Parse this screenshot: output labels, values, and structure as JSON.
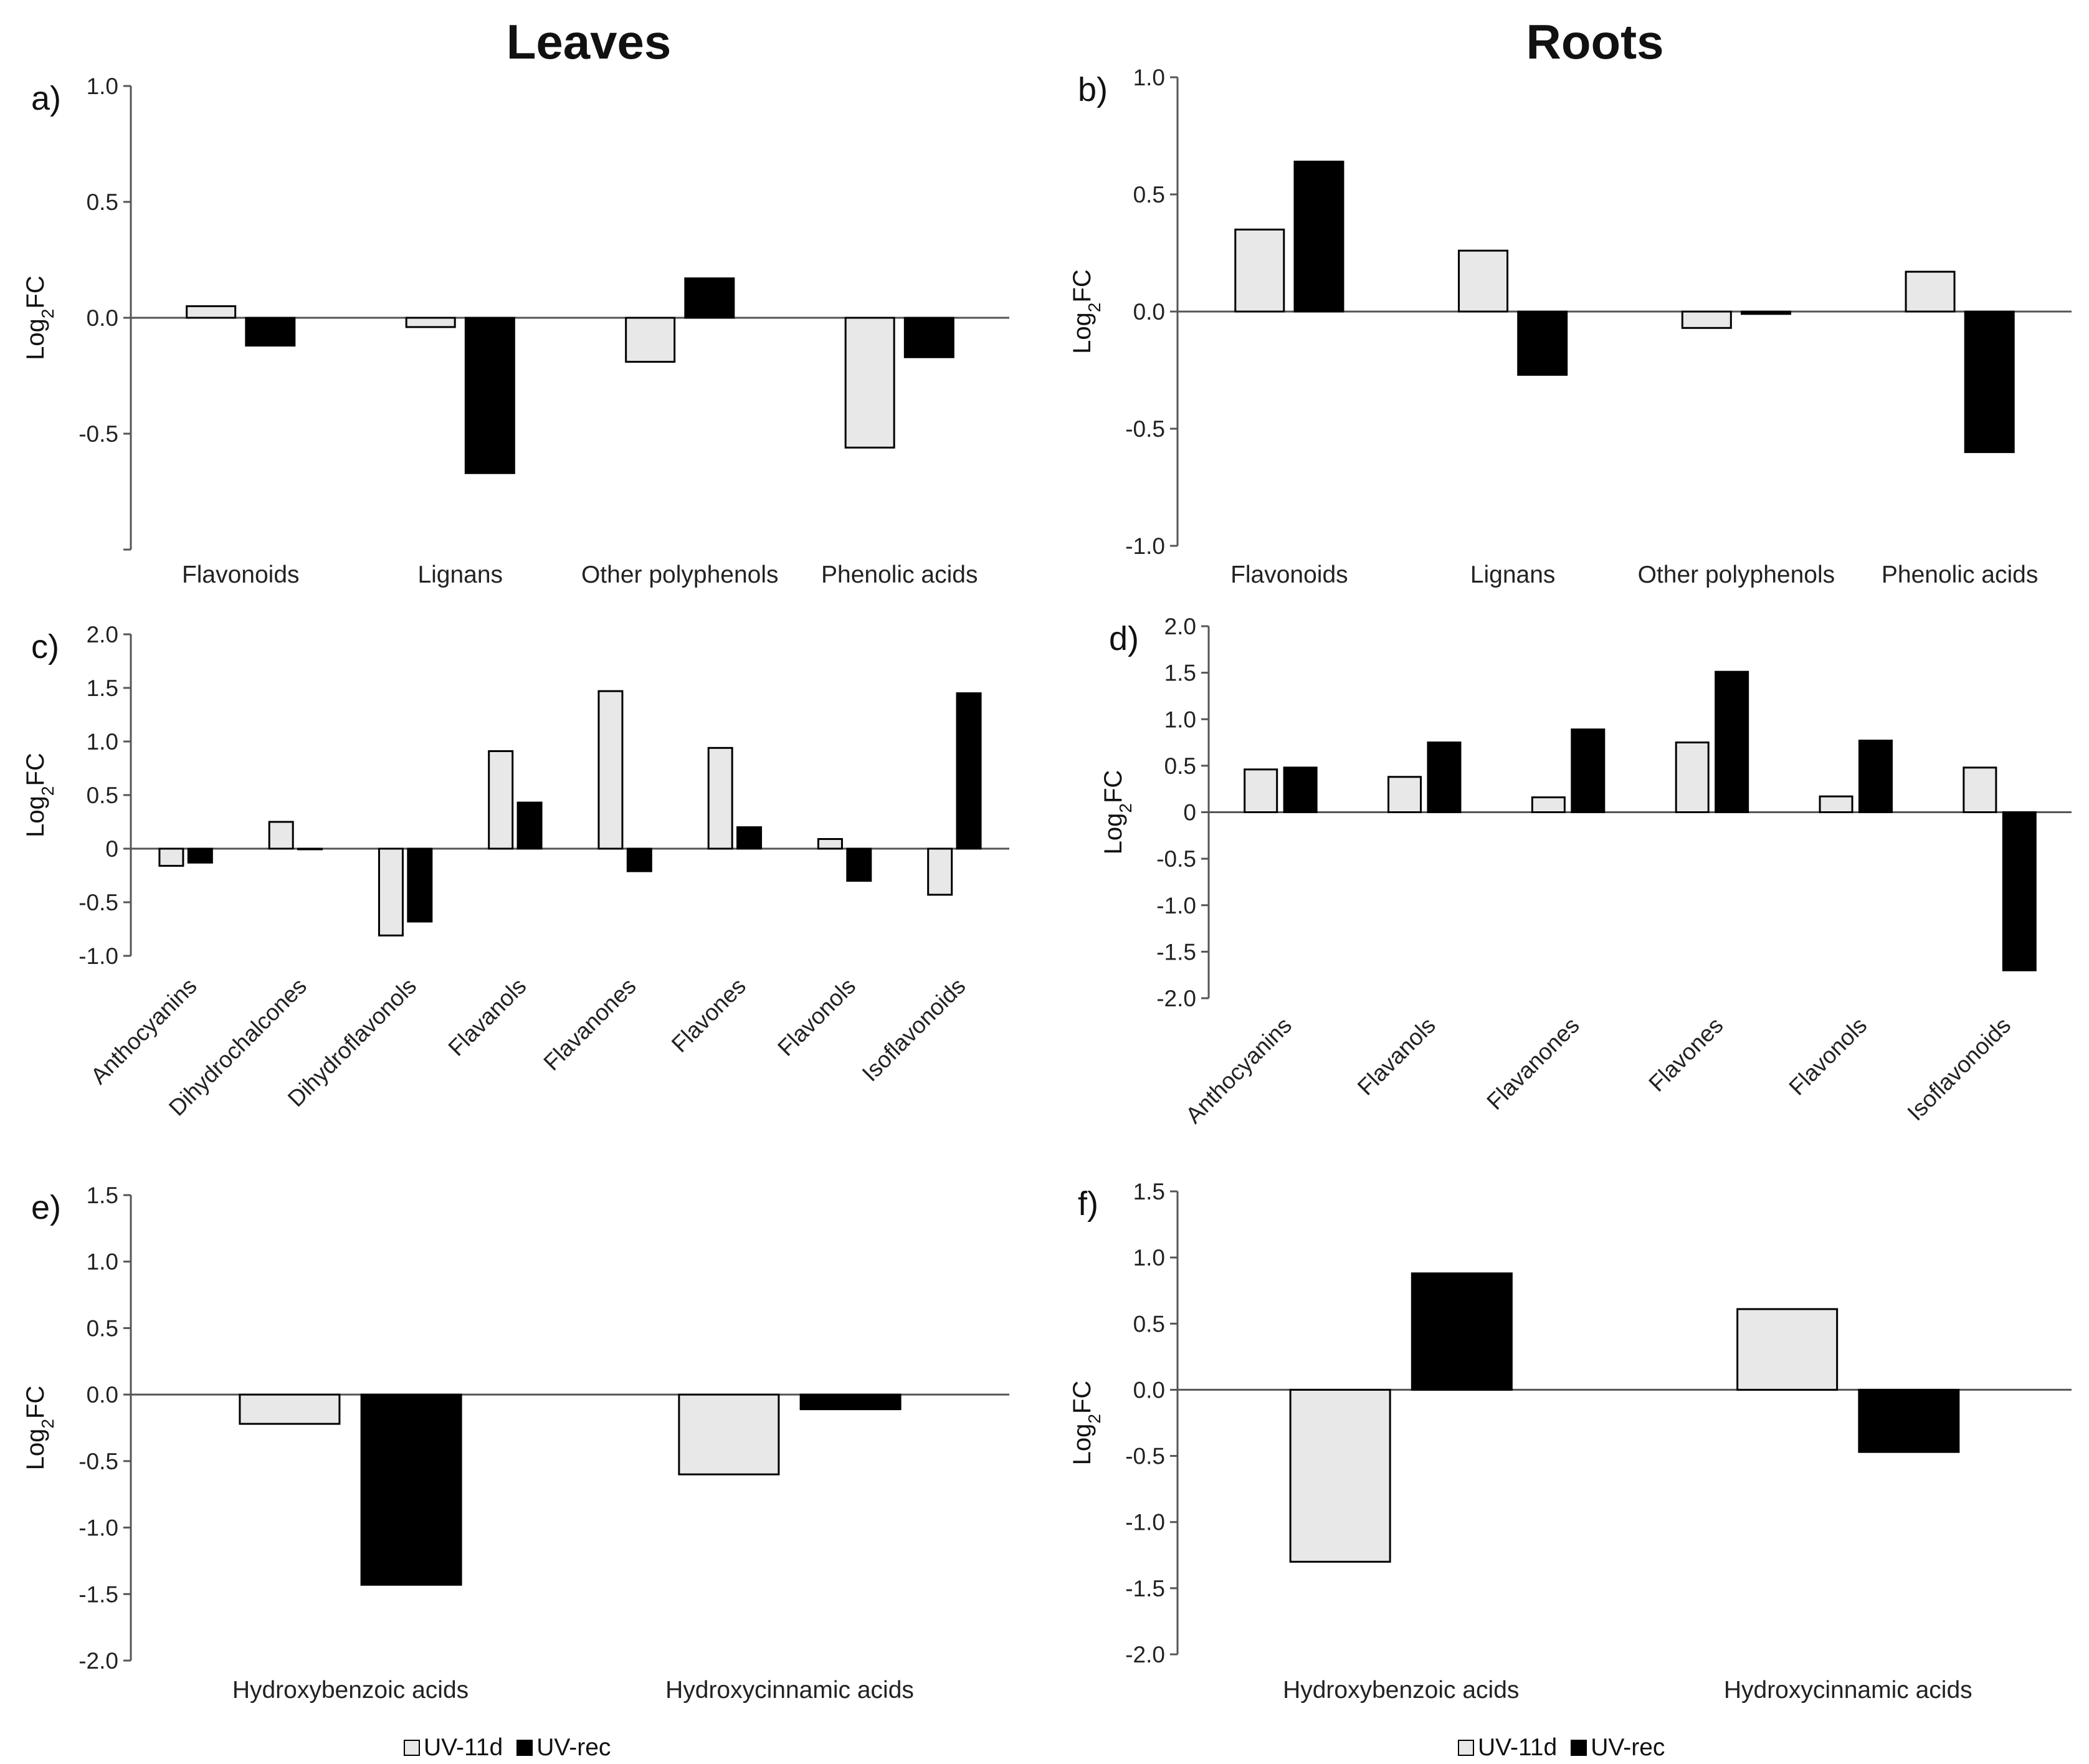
{
  "columns": {
    "leaves": "Leaves",
    "roots": "Roots"
  },
  "legend": [
    {
      "name": "UV-11d",
      "color": "#e8e8e8"
    },
    {
      "name": "UV-rec",
      "color": "#000000"
    }
  ],
  "colors": {
    "uv11d": "#e8e8e8",
    "uvrec": "#000000",
    "axis": "#555555"
  },
  "chart_data": [
    {
      "panel": "a)",
      "type": "bar",
      "ylabel": "Log2FC",
      "categories": [
        "Flavonoids",
        "Lignans",
        "Other polyphenols",
        "Phenolic acids"
      ],
      "series": [
        {
          "name": "UV-11d",
          "values": [
            0.05,
            -0.04,
            -0.19,
            -0.56
          ]
        },
        {
          "name": "UV-rec",
          "values": [
            -0.12,
            -0.67,
            0.17,
            -0.17
          ]
        }
      ],
      "ylim": [
        -1.0,
        1.0
      ],
      "ticks": [
        1.0,
        0.5,
        0.0,
        -0.5
      ],
      "tick_labels": [
        "1.0",
        "0.5",
        "0.0",
        "-0.5"
      ]
    },
    {
      "panel": "b)",
      "type": "bar",
      "ylabel": "Log2FC",
      "categories": [
        "Flavonoids",
        "Lignans",
        "Other polyphenols",
        "Phenolic acids"
      ],
      "series": [
        {
          "name": "UV-11d",
          "values": [
            0.35,
            0.26,
            -0.07,
            0.17
          ]
        },
        {
          "name": "UV-rec",
          "values": [
            0.64,
            -0.27,
            -0.01,
            -0.6
          ]
        }
      ],
      "ylim": [
        -1.0,
        1.0
      ],
      "ticks": [
        1.0,
        0.5,
        0.0,
        -0.5,
        -1.0
      ],
      "tick_labels": [
        "1.0",
        "0.5",
        "0.0",
        "-0.5",
        "-1.0"
      ]
    },
    {
      "panel": "c)",
      "type": "bar",
      "ylabel": "Log2FC",
      "categories": [
        "Anthocyanins",
        "Dihydrochalcones",
        "Dihydroflavonols",
        "Flavanols",
        "Flavanones",
        "Flavones",
        "Flavonols",
        "Isoflavonoids"
      ],
      "series": [
        {
          "name": "UV-11d",
          "values": [
            -0.16,
            0.25,
            -0.81,
            0.91,
            1.47,
            0.94,
            0.09,
            -0.43
          ]
        },
        {
          "name": "UV-rec",
          "values": [
            -0.13,
            0.0,
            -0.68,
            0.43,
            -0.21,
            0.2,
            -0.3,
            1.45
          ]
        }
      ],
      "ylim": [
        -1.0,
        2.0
      ],
      "ticks": [
        2.0,
        1.5,
        1.0,
        0.5,
        0,
        -0.5,
        -1.0
      ],
      "tick_labels": [
        "2.0",
        "1.5",
        "1.0",
        "0.5",
        "0",
        "-0.5",
        "-1.0"
      ]
    },
    {
      "panel": "d)",
      "type": "bar",
      "ylabel": "Log2FC",
      "categories": [
        "Anthocyanins",
        "Flavanols",
        "Flavanones",
        "Flavones",
        "Flavonols",
        "Isoflavonoids"
      ],
      "series": [
        {
          "name": "UV-11d",
          "values": [
            0.46,
            0.38,
            0.16,
            0.75,
            0.17,
            0.48
          ]
        },
        {
          "name": "UV-rec",
          "values": [
            0.48,
            0.75,
            0.89,
            1.51,
            0.77,
            -1.7
          ]
        }
      ],
      "ylim": [
        -2.0,
        2.0
      ],
      "ticks": [
        2.0,
        1.5,
        1.0,
        0.5,
        0,
        -0.5,
        -1.0,
        -1.5,
        -2.0
      ],
      "tick_labels": [
        "2.0",
        "1.5",
        "1.0",
        "0.5",
        "0",
        "-0.5",
        "-1.0",
        "-1.5",
        "-2.0"
      ]
    },
    {
      "panel": "e)",
      "type": "bar",
      "ylabel": "Log2FC",
      "categories": [
        "Hydroxybenzoic acids",
        "Hydroxycinnamic acids"
      ],
      "series": [
        {
          "name": "UV-11d",
          "values": [
            -0.22,
            -0.6
          ]
        },
        {
          "name": "UV-rec",
          "values": [
            -1.43,
            -0.11
          ]
        }
      ],
      "ylim": [
        -2.0,
        1.5
      ],
      "ticks": [
        1.5,
        1.0,
        0.5,
        0.0,
        -0.5,
        -1.0,
        -1.5,
        -2.0
      ],
      "tick_labels": [
        "1.5",
        "1.0",
        "0.5",
        "0.0",
        "-0.5",
        "-1.0",
        "-1.5",
        "-2.0"
      ]
    },
    {
      "panel": "f)",
      "type": "bar",
      "ylabel": "Log2FC",
      "categories": [
        "Hydroxybenzoic acids",
        "Hydroxycinnamic acids"
      ],
      "series": [
        {
          "name": "UV-11d",
          "values": [
            -1.3,
            0.61
          ]
        },
        {
          "name": "UV-rec",
          "values": [
            0.88,
            -0.47
          ]
        }
      ],
      "ylim": [
        -2.0,
        1.5
      ],
      "ticks": [
        1.5,
        1.0,
        0.5,
        0.0,
        -0.5,
        -1.0,
        -1.5,
        -2.0
      ],
      "tick_labels": [
        "1.5",
        "1.0",
        "0.5",
        "0.0",
        "-0.5",
        "-1.0",
        "-1.5",
        "-2.0"
      ]
    }
  ]
}
